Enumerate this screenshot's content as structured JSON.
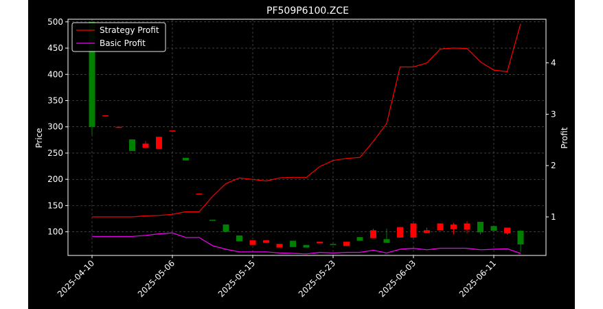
{
  "chart_data": {
    "type": "candlestick+line",
    "title": "PF509P6100.ZCE",
    "ylabel_left": "Price",
    "ylabel_right": "Profit",
    "xlabel": "",
    "ylim_left": [
      55,
      505
    ],
    "ylim_right": [
      0.25,
      4.85
    ],
    "yticks_left": [
      100,
      150,
      200,
      250,
      300,
      350,
      400,
      450,
      500
    ],
    "yticks_right": [
      1,
      2,
      3,
      4
    ],
    "xtick_labels": [
      {
        "index": 0,
        "label": "2025-04-10"
      },
      {
        "index": 6,
        "label": "2025-05-06"
      },
      {
        "index": 12,
        "label": "2025-05-15"
      },
      {
        "index": 18,
        "label": "2025-05-23"
      },
      {
        "index": 24,
        "label": "2025-06-03"
      },
      {
        "index": 30,
        "label": "2025-06-11"
      }
    ],
    "grid": true,
    "legend_position": "top-left",
    "colors": {
      "background": "#000000",
      "up": "#008000",
      "down": "#ff0000",
      "strategy": "#ff0000",
      "basic": "#ff00ff",
      "text": "#ffffff",
      "grid": "#808080"
    },
    "candles": [
      {
        "o": 300,
        "c": 500,
        "h": 500,
        "l": 285
      },
      {
        "o": 322,
        "c": 320,
        "h": 322,
        "l": 320
      },
      {
        "o": 300,
        "c": 299,
        "h": 300,
        "l": 299
      },
      {
        "o": 254,
        "c": 276,
        "h": 276,
        "l": 254
      },
      {
        "o": 268,
        "c": 260,
        "h": 273,
        "l": 260
      },
      {
        "o": 281,
        "c": 258,
        "h": 281,
        "l": 258
      },
      {
        "o": 293,
        "c": 292,
        "h": 293,
        "l": 292
      },
      {
        "o": 236,
        "c": 241,
        "h": 241,
        "l": 236
      },
      {
        "o": 173,
        "c": 172,
        "h": 173,
        "l": 172
      },
      {
        "o": 122,
        "c": 123,
        "h": 123,
        "l": 122
      },
      {
        "o": 100,
        "c": 114,
        "h": 114,
        "l": 100
      },
      {
        "o": 82,
        "c": 93,
        "h": 93,
        "l": 82
      },
      {
        "o": 84,
        "c": 75,
        "h": 84,
        "l": 75
      },
      {
        "o": 84,
        "c": 79,
        "h": 84,
        "l": 79
      },
      {
        "o": 77,
        "c": 70,
        "h": 77,
        "l": 70
      },
      {
        "o": 71,
        "c": 83,
        "h": 83,
        "l": 71
      },
      {
        "o": 70,
        "c": 75,
        "h": 75,
        "l": 70
      },
      {
        "o": 81,
        "c": 78,
        "h": 81,
        "l": 78
      },
      {
        "o": 76,
        "c": 77,
        "h": 77,
        "l": 76
      },
      {
        "o": 81,
        "c": 73,
        "h": 81,
        "l": 73
      },
      {
        "o": 83,
        "c": 90,
        "h": 90,
        "l": 83
      },
      {
        "o": 103,
        "c": 88,
        "h": 106,
        "l": 88
      },
      {
        "o": 79,
        "c": 86,
        "h": 106,
        "l": 79
      },
      {
        "o": 109,
        "c": 89,
        "h": 109,
        "l": 89
      },
      {
        "o": 116,
        "c": 89,
        "h": 116,
        "l": 89
      },
      {
        "o": 103,
        "c": 98,
        "h": 108,
        "l": 98
      },
      {
        "o": 116,
        "c": 103,
        "h": 116,
        "l": 103
      },
      {
        "o": 114,
        "c": 105,
        "h": 117,
        "l": 95
      },
      {
        "o": 116,
        "c": 104,
        "h": 120,
        "l": 97
      },
      {
        "o": 99,
        "c": 119,
        "h": 119,
        "l": 95
      },
      {
        "o": 102,
        "c": 111,
        "h": 111,
        "l": 102
      },
      {
        "o": 108,
        "c": 97,
        "h": 108,
        "l": 95
      },
      {
        "o": 76,
        "c": 102,
        "h": 103,
        "l": 62
      }
    ],
    "series": [
      {
        "name": "Strategy Profit",
        "color": "#ff0000",
        "values": [
          1.0,
          1.0,
          1.0,
          1.0,
          1.02,
          1.03,
          1.05,
          1.1,
          1.1,
          1.4,
          1.65,
          1.76,
          1.73,
          1.7,
          1.76,
          1.77,
          1.77,
          1.98,
          2.1,
          2.14,
          2.16,
          2.47,
          2.82,
          3.92,
          3.92,
          4.0,
          4.27,
          4.29,
          4.28,
          4.02,
          3.86,
          3.83,
          4.76
        ]
      },
      {
        "name": "Basic Profit",
        "color": "#ff00ff",
        "values": [
          0.62,
          0.62,
          0.62,
          0.62,
          0.64,
          0.67,
          0.69,
          0.6,
          0.6,
          0.44,
          0.37,
          0.32,
          0.32,
          0.32,
          0.3,
          0.29,
          0.28,
          0.31,
          0.3,
          0.31,
          0.31,
          0.35,
          0.3,
          0.37,
          0.39,
          0.36,
          0.39,
          0.39,
          0.39,
          0.36,
          0.37,
          0.38,
          0.29
        ]
      }
    ]
  }
}
